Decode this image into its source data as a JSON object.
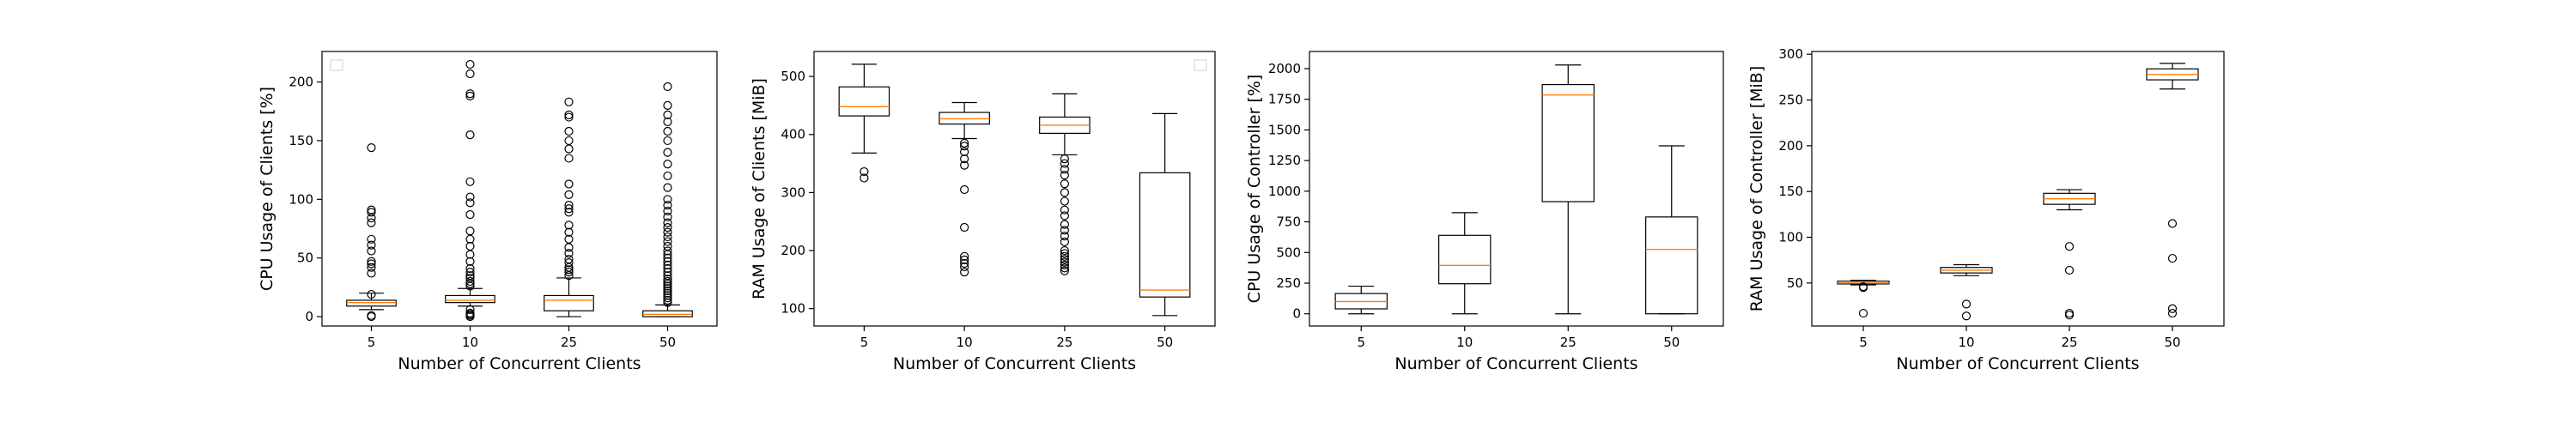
{
  "figure": {
    "background": "#ffffff"
  },
  "style": {
    "box_edge": "#000000",
    "median": "#ff7f0e",
    "outlier_edge": "#000000",
    "axes_edge": "#000000"
  },
  "chart_data": [
    {
      "type": "box",
      "xlabel": "Number of Concurrent Clients",
      "ylabel": "CPU Usage of Clients [%]",
      "ylim": [
        -8,
        226
      ],
      "yticks": [
        0,
        50,
        100,
        150,
        200
      ],
      "legend": {
        "placement": "top-left",
        "entries": []
      },
      "categories": [
        "5",
        "10",
        "25",
        "50"
      ],
      "boxes": [
        {
          "category": "5",
          "whisker_low": 6,
          "q1": 9,
          "median": 12,
          "q3": 14,
          "whisker_high": 20,
          "outliers": [
            0,
            1,
            19,
            37,
            42,
            45,
            47,
            56,
            61,
            66,
            80,
            84,
            89,
            91,
            144
          ]
        },
        {
          "category": "10",
          "whisker_low": 9,
          "q1": 12,
          "median": 14,
          "q3": 18,
          "whisker_high": 24,
          "outliers": [
            0,
            1,
            2,
            3,
            6,
            26,
            28,
            30,
            33,
            35,
            38,
            41,
            47,
            53,
            60,
            66,
            73,
            87,
            97,
            102,
            115,
            155,
            188,
            190,
            207,
            215
          ]
        },
        {
          "category": "25",
          "whisker_low": 0,
          "q1": 5,
          "median": 14,
          "q3": 18,
          "whisker_high": 33,
          "outliers": [
            35,
            38,
            40,
            42,
            46,
            49,
            54,
            59,
            66,
            72,
            78,
            89,
            92,
            95,
            104,
            113,
            135,
            143,
            150,
            158,
            170,
            172,
            183
          ]
        },
        {
          "category": "50",
          "whisker_low": 0,
          "q1": 0,
          "median": 2,
          "q3": 5,
          "whisker_high": 10,
          "outliers": [
            12,
            14,
            16,
            18,
            20,
            22,
            24,
            26,
            28,
            30,
            32,
            35,
            38,
            41,
            44,
            47,
            50,
            53,
            56,
            60,
            64,
            68,
            72,
            76,
            80,
            85,
            90,
            95,
            100,
            110,
            120,
            130,
            140,
            150,
            158,
            166,
            172,
            180,
            196
          ]
        }
      ]
    },
    {
      "type": "box",
      "xlabel": "Number of Concurrent Clients",
      "ylabel": "RAM Usage of Clients [MiB]",
      "ylim": [
        70,
        543
      ],
      "yticks": [
        100,
        200,
        300,
        400,
        500
      ],
      "legend": {
        "placement": "top-right",
        "entries": []
      },
      "categories": [
        "5",
        "10",
        "25",
        "50"
      ],
      "boxes": [
        {
          "category": "5",
          "whisker_low": 368,
          "q1": 432,
          "median": 448,
          "q3": 482,
          "whisker_high": 521,
          "outliers": [
            325,
            336
          ]
        },
        {
          "category": "10",
          "whisker_low": 393,
          "q1": 418,
          "median": 427,
          "q3": 438,
          "whisker_high": 455,
          "outliers": [
            163,
            172,
            178,
            184,
            190,
            240,
            305,
            347,
            358,
            370,
            380,
            385
          ]
        },
        {
          "category": "25",
          "whisker_low": 365,
          "q1": 402,
          "median": 416,
          "q3": 430,
          "whisker_high": 470,
          "outliers": [
            165,
            170,
            175,
            180,
            185,
            190,
            195,
            200,
            215,
            225,
            235,
            245,
            260,
            270,
            285,
            300,
            315,
            330,
            340,
            350,
            358
          ]
        },
        {
          "category": "50",
          "whisker_low": 88,
          "q1": 120,
          "median": 132,
          "q3": 334,
          "whisker_high": 436,
          "outliers": []
        }
      ]
    },
    {
      "type": "box",
      "xlabel": "Number of Concurrent Clients",
      "ylabel": "CPU Usage of Controller [%]",
      "ylim": [
        -100,
        2140
      ],
      "yticks": [
        0,
        250,
        500,
        750,
        1000,
        1250,
        1500,
        1750,
        2000
      ],
      "legend": {
        "placement": "none",
        "entries": []
      },
      "categories": [
        "5",
        "10",
        "25",
        "50"
      ],
      "boxes": [
        {
          "category": "5",
          "whisker_low": 0,
          "q1": 40,
          "median": 100,
          "q3": 165,
          "whisker_high": 225,
          "outliers": []
        },
        {
          "category": "10",
          "whisker_low": 0,
          "q1": 245,
          "median": 395,
          "q3": 640,
          "whisker_high": 825,
          "outliers": []
        },
        {
          "category": "25",
          "whisker_low": 0,
          "q1": 915,
          "median": 1785,
          "q3": 1870,
          "whisker_high": 2030,
          "outliers": []
        },
        {
          "category": "50",
          "whisker_low": 0,
          "q1": 0,
          "median": 525,
          "q3": 790,
          "whisker_high": 1370,
          "outliers": []
        }
      ]
    },
    {
      "type": "box",
      "xlabel": "Number of Concurrent Clients",
      "ylabel": "RAM Usage of Controller [MiB]",
      "ylim": [
        3,
        303
      ],
      "yticks": [
        50,
        100,
        150,
        200,
        250,
        300
      ],
      "legend": {
        "placement": "none",
        "entries": []
      },
      "categories": [
        "5",
        "10",
        "25",
        "50"
      ],
      "boxes": [
        {
          "category": "5",
          "whisker_low": 48,
          "q1": 49,
          "median": 50,
          "q3": 52,
          "whisker_high": 53,
          "outliers": [
            17,
            45,
            46
          ]
        },
        {
          "category": "10",
          "whisker_low": 58,
          "q1": 61,
          "median": 64,
          "q3": 67,
          "whisker_high": 70,
          "outliers": [
            14,
            27
          ]
        },
        {
          "category": "25",
          "whisker_low": 130,
          "q1": 136,
          "median": 142,
          "q3": 148,
          "whisker_high": 152,
          "outliers": [
            15,
            17,
            64,
            90
          ]
        },
        {
          "category": "50",
          "whisker_low": 262,
          "q1": 272,
          "median": 278,
          "q3": 284,
          "whisker_high": 290,
          "outliers": [
            17,
            22,
            77,
            115
          ]
        }
      ]
    }
  ]
}
